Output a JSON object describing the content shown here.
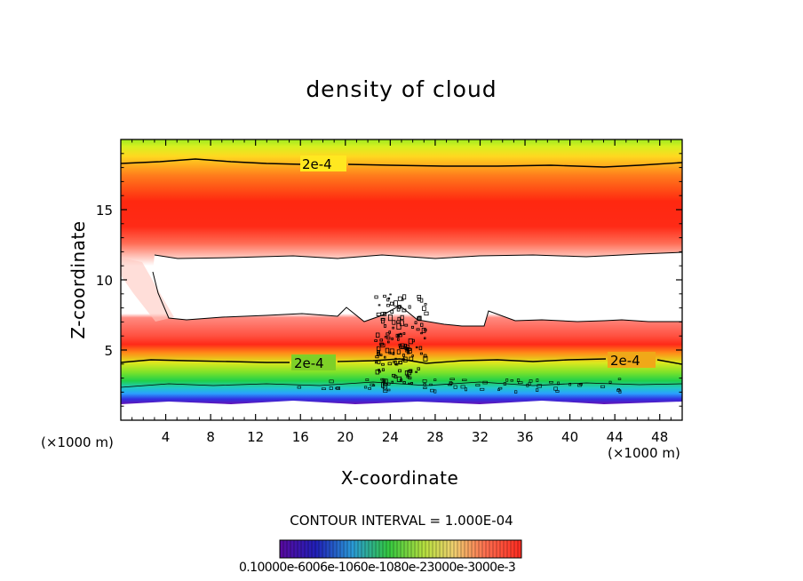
{
  "chart_data": {
    "type": "heatmap",
    "title": "density of cloud",
    "xlabel": "X-coordinate",
    "ylabel": "Z-coordinate",
    "x_unit": "(×1000 m)",
    "z_unit": "(×1000 m)",
    "xlim": [
      0,
      50
    ],
    "ylim": [
      0,
      20
    ],
    "x_ticks": [
      4,
      8,
      12,
      16,
      20,
      24,
      28,
      32,
      36,
      40,
      44,
      48
    ],
    "y_ticks": [
      5,
      10,
      15
    ],
    "contour_interval_text": "CONTOUR INTERVAL = 1.000E-04",
    "contour_labels": [
      "2e-4",
      "2e-4",
      "2e-4"
    ],
    "colorbar_label_text": "0.10000e-6006e-1060e-1080e-23000e-3000e-3",
    "colors": {
      "low": "#5a0aa0",
      "mid": "#2ed32e",
      "high": "#ff1010",
      "axes": "#000000",
      "background": "#ffffff"
    }
  }
}
